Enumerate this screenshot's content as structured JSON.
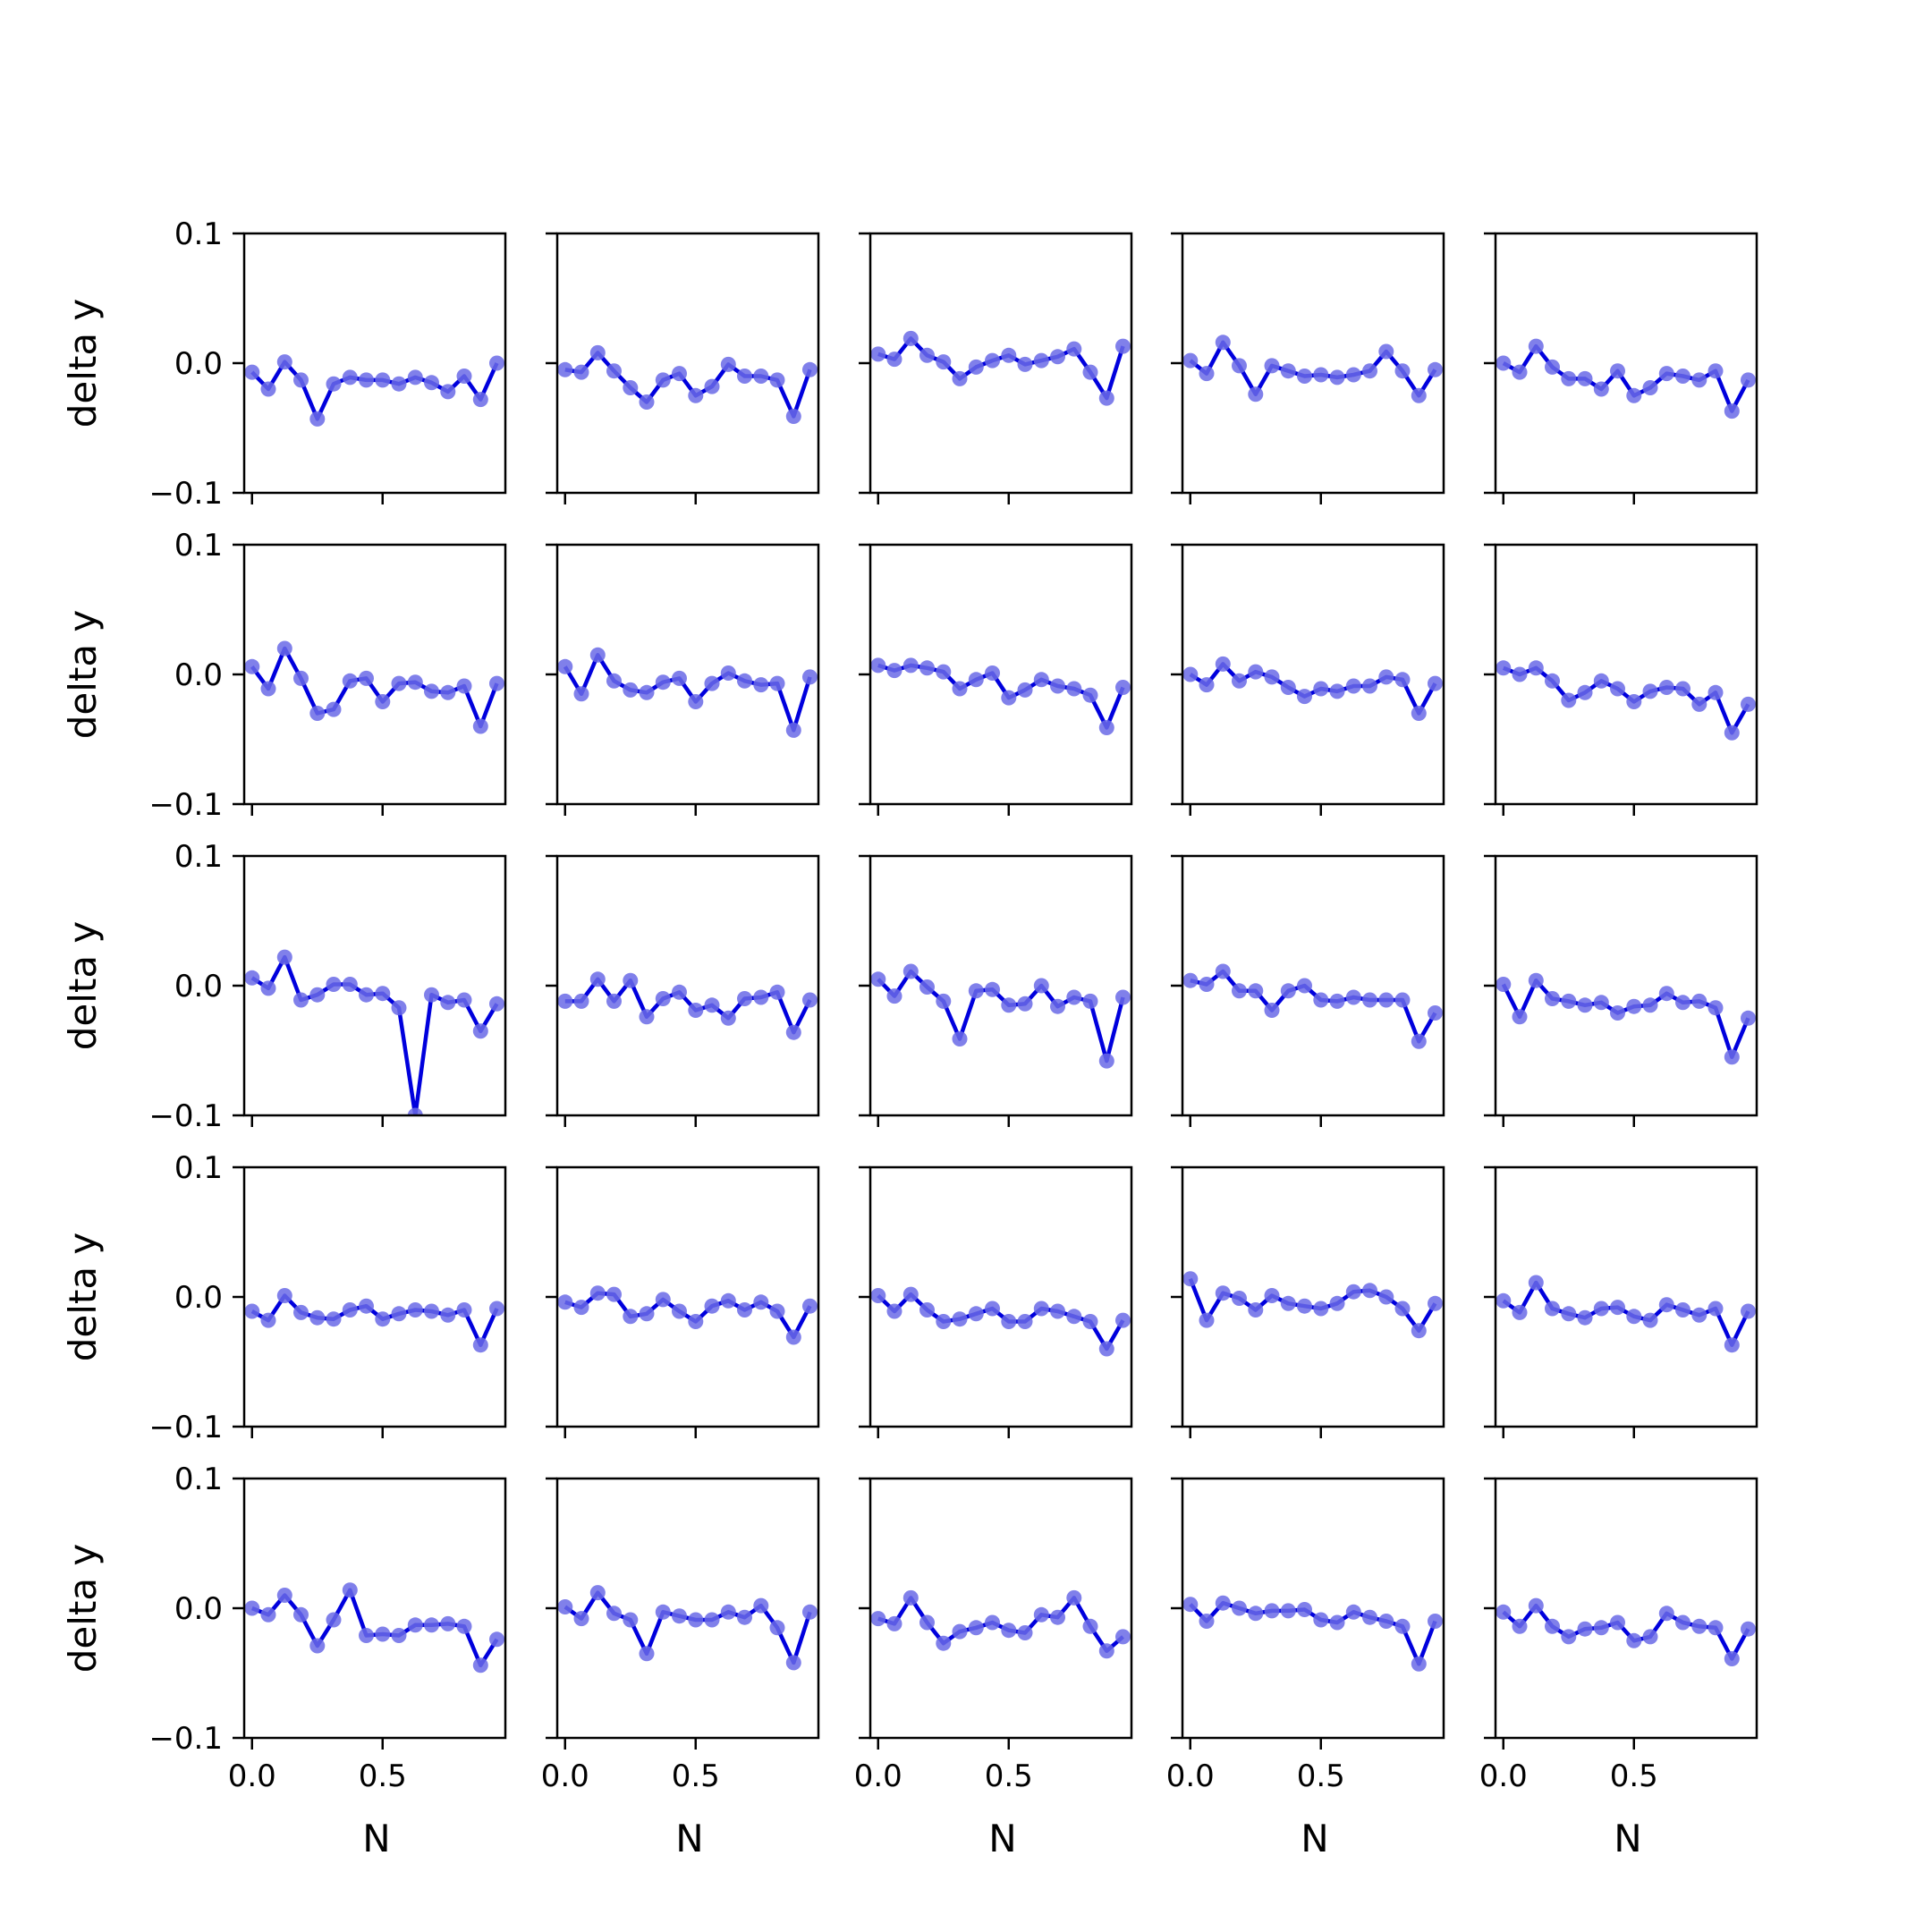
{
  "figure": {
    "ylabel": "delta y",
    "xlabel": "N"
  },
  "chart_data": {
    "type": "line",
    "layout": "5x5 grid of small multiples, shared x and y axes",
    "line_color": "#0000dd",
    "marker_color": "#6a6ae6",
    "xlim": [
      -0.03,
      0.97
    ],
    "ylim": [
      -0.1,
      0.1
    ],
    "x_ticks": [
      0.0,
      0.5
    ],
    "x_tick_labels": [
      "0.0",
      "0.5"
    ],
    "y_ticks": [
      0.1,
      0.0,
      -0.1
    ],
    "y_tick_labels": [
      "0.1",
      "0.0",
      "−0.1"
    ],
    "x": [
      0.0,
      0.0625,
      0.125,
      0.1875,
      0.25,
      0.3125,
      0.375,
      0.4375,
      0.5,
      0.5625,
      0.625,
      0.6875,
      0.75,
      0.8125,
      0.875,
      0.9375
    ],
    "panels": [
      [
        -0.007,
        -0.02,
        0.001,
        -0.013,
        -0.043,
        -0.016,
        -0.011,
        -0.013,
        -0.013,
        -0.016,
        -0.011,
        -0.015,
        -0.022,
        -0.01,
        -0.028,
        0.0
      ],
      [
        -0.005,
        -0.007,
        0.008,
        -0.006,
        -0.019,
        -0.03,
        -0.013,
        -0.008,
        -0.025,
        -0.018,
        -0.001,
        -0.01,
        -0.01,
        -0.013,
        -0.041,
        -0.005
      ],
      [
        0.007,
        0.003,
        0.019,
        0.006,
        0.001,
        -0.012,
        -0.003,
        0.002,
        0.006,
        -0.001,
        0.002,
        0.005,
        0.011,
        -0.007,
        -0.027,
        0.013
      ],
      [
        0.002,
        -0.008,
        0.016,
        -0.002,
        -0.024,
        -0.002,
        -0.006,
        -0.01,
        -0.009,
        -0.011,
        -0.009,
        -0.006,
        0.009,
        -0.006,
        -0.025,
        -0.005
      ],
      [
        0.0,
        -0.007,
        0.013,
        -0.003,
        -0.012,
        -0.012,
        -0.02,
        -0.006,
        -0.025,
        -0.019,
        -0.008,
        -0.01,
        -0.013,
        -0.006,
        -0.037,
        -0.013
      ],
      [
        0.006,
        -0.011,
        0.02,
        -0.003,
        -0.03,
        -0.027,
        -0.005,
        -0.003,
        -0.021,
        -0.007,
        -0.006,
        -0.013,
        -0.014,
        -0.009,
        -0.04,
        -0.007
      ],
      [
        0.006,
        -0.015,
        0.015,
        -0.005,
        -0.012,
        -0.014,
        -0.006,
        -0.003,
        -0.021,
        -0.007,
        0.001,
        -0.005,
        -0.008,
        -0.007,
        -0.043,
        -0.002
      ],
      [
        0.007,
        0.003,
        0.007,
        0.005,
        0.002,
        -0.011,
        -0.004,
        0.001,
        -0.018,
        -0.012,
        -0.004,
        -0.009,
        -0.011,
        -0.016,
        -0.041,
        -0.01
      ],
      [
        0.0,
        -0.008,
        0.008,
        -0.005,
        0.002,
        -0.002,
        -0.01,
        -0.017,
        -0.011,
        -0.013,
        -0.009,
        -0.009,
        -0.002,
        -0.004,
        -0.03,
        -0.007
      ],
      [
        0.005,
        0.0,
        0.005,
        -0.005,
        -0.02,
        -0.014,
        -0.005,
        -0.011,
        -0.021,
        -0.013,
        -0.01,
        -0.011,
        -0.023,
        -0.014,
        -0.045,
        -0.023
      ],
      [
        0.006,
        -0.002,
        0.022,
        -0.011,
        -0.007,
        0.001,
        0.001,
        -0.007,
        -0.006,
        -0.017,
        -0.1,
        -0.007,
        -0.013,
        -0.011,
        -0.035,
        -0.014
      ],
      [
        -0.012,
        -0.012,
        0.005,
        -0.012,
        0.004,
        -0.024,
        -0.01,
        -0.005,
        -0.019,
        -0.015,
        -0.025,
        -0.01,
        -0.009,
        -0.005,
        -0.036,
        -0.011
      ],
      [
        0.005,
        -0.008,
        0.011,
        -0.001,
        -0.012,
        -0.041,
        -0.004,
        -0.003,
        -0.015,
        -0.014,
        0.0,
        -0.016,
        -0.009,
        -0.012,
        -0.058,
        -0.009
      ],
      [
        0.004,
        0.001,
        0.011,
        -0.004,
        -0.004,
        -0.019,
        -0.004,
        0.0,
        -0.011,
        -0.012,
        -0.009,
        -0.011,
        -0.011,
        -0.011,
        -0.043,
        -0.021
      ],
      [
        0.001,
        -0.024,
        0.004,
        -0.01,
        -0.012,
        -0.015,
        -0.013,
        -0.021,
        -0.016,
        -0.015,
        -0.006,
        -0.013,
        -0.012,
        -0.017,
        -0.055,
        -0.025
      ],
      [
        -0.011,
        -0.018,
        0.001,
        -0.012,
        -0.016,
        -0.017,
        -0.01,
        -0.007,
        -0.017,
        -0.013,
        -0.01,
        -0.011,
        -0.014,
        -0.01,
        -0.037,
        -0.009
      ],
      [
        -0.004,
        -0.008,
        0.003,
        0.002,
        -0.015,
        -0.013,
        -0.002,
        -0.011,
        -0.019,
        -0.007,
        -0.003,
        -0.01,
        -0.004,
        -0.011,
        -0.031,
        -0.007
      ],
      [
        0.001,
        -0.011,
        0.002,
        -0.01,
        -0.019,
        -0.017,
        -0.013,
        -0.009,
        -0.019,
        -0.019,
        -0.009,
        -0.011,
        -0.015,
        -0.019,
        -0.04,
        -0.018
      ],
      [
        0.014,
        -0.018,
        0.003,
        -0.001,
        -0.01,
        0.001,
        -0.005,
        -0.007,
        -0.009,
        -0.005,
        0.004,
        0.005,
        0.0,
        -0.009,
        -0.026,
        -0.005
      ],
      [
        -0.003,
        -0.012,
        0.011,
        -0.009,
        -0.013,
        -0.016,
        -0.009,
        -0.008,
        -0.015,
        -0.018,
        -0.006,
        -0.01,
        -0.014,
        -0.009,
        -0.037,
        -0.011
      ],
      [
        0.0,
        -0.005,
        0.01,
        -0.005,
        -0.029,
        -0.009,
        0.014,
        -0.021,
        -0.02,
        -0.021,
        -0.013,
        -0.013,
        -0.012,
        -0.014,
        -0.044,
        -0.024
      ],
      [
        0.001,
        -0.008,
        0.012,
        -0.004,
        -0.009,
        -0.035,
        -0.003,
        -0.006,
        -0.009,
        -0.009,
        -0.003,
        -0.007,
        0.002,
        -0.015,
        -0.042,
        -0.003
      ],
      [
        -0.008,
        -0.012,
        0.008,
        -0.011,
        -0.027,
        -0.018,
        -0.015,
        -0.011,
        -0.017,
        -0.019,
        -0.005,
        -0.007,
        0.008,
        -0.014,
        -0.033,
        -0.022
      ],
      [
        0.003,
        -0.01,
        0.004,
        0.0,
        -0.004,
        -0.002,
        -0.002,
        -0.001,
        -0.009,
        -0.011,
        -0.003,
        -0.007,
        -0.01,
        -0.014,
        -0.043,
        -0.01
      ],
      [
        -0.003,
        -0.014,
        0.002,
        -0.014,
        -0.022,
        -0.016,
        -0.015,
        -0.011,
        -0.025,
        -0.022,
        -0.004,
        -0.011,
        -0.014,
        -0.015,
        -0.039,
        -0.016
      ]
    ]
  }
}
